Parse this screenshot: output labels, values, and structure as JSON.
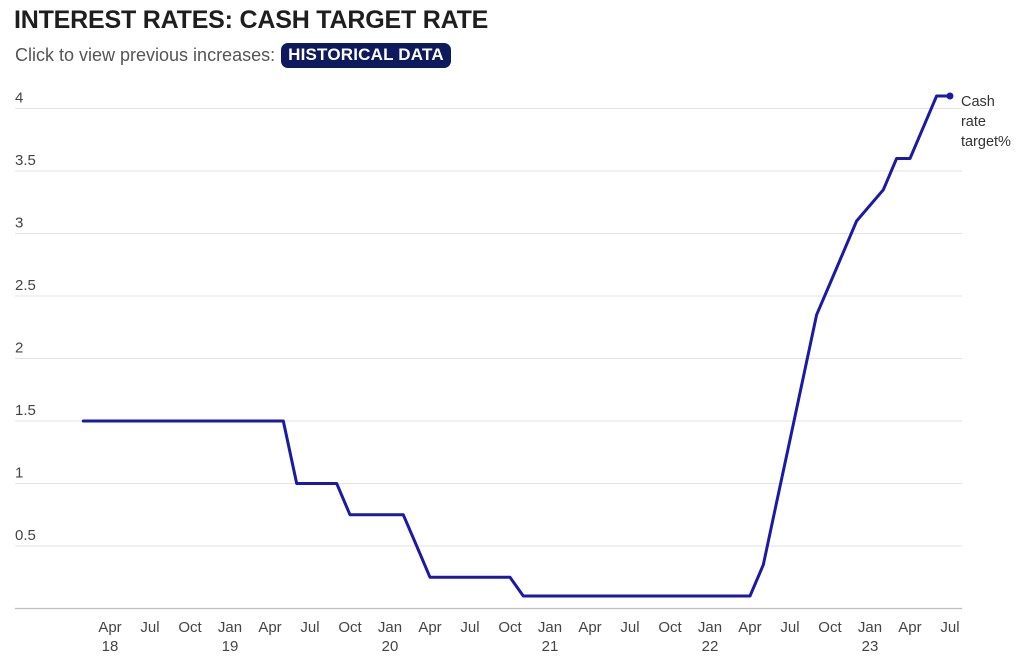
{
  "header": {
    "title": "INTEREST RATES: CASH TARGET RATE",
    "subtitle": "Click to view previous increases:",
    "button_label": "HISTORICAL DATA"
  },
  "colors": {
    "line": "#1a1aa6",
    "button_bg": "#0d1b5e",
    "grid": "#e3e3e3"
  },
  "chart_data": {
    "type": "line",
    "title": "INTEREST RATES: CASH TARGET RATE",
    "xlabel": "",
    "ylabel": "",
    "ylim": [
      0,
      4.1
    ],
    "grid": true,
    "legend": "end-of-line label",
    "y_ticks": [
      "0.5",
      "1",
      "1.5",
      "2",
      "2.5",
      "3",
      "3.5",
      "4"
    ],
    "x_ticks": [
      {
        "date": "2018-04",
        "label": "Apr",
        "year": "18"
      },
      {
        "date": "2018-07",
        "label": "Jul",
        "year": ""
      },
      {
        "date": "2018-10",
        "label": "Oct",
        "year": ""
      },
      {
        "date": "2019-01",
        "label": "Jan",
        "year": "19"
      },
      {
        "date": "2019-04",
        "label": "Apr",
        "year": ""
      },
      {
        "date": "2019-07",
        "label": "Jul",
        "year": ""
      },
      {
        "date": "2019-10",
        "label": "Oct",
        "year": ""
      },
      {
        "date": "2020-01",
        "label": "Jan",
        "year": "20"
      },
      {
        "date": "2020-04",
        "label": "Apr",
        "year": ""
      },
      {
        "date": "2020-07",
        "label": "Jul",
        "year": ""
      },
      {
        "date": "2020-10",
        "label": "Oct",
        "year": ""
      },
      {
        "date": "2021-01",
        "label": "Jan",
        "year": "21"
      },
      {
        "date": "2021-04",
        "label": "Apr",
        "year": ""
      },
      {
        "date": "2021-07",
        "label": "Jul",
        "year": ""
      },
      {
        "date": "2021-10",
        "label": "Oct",
        "year": ""
      },
      {
        "date": "2022-01",
        "label": "Jan",
        "year": "22"
      },
      {
        "date": "2022-04",
        "label": "Apr",
        "year": ""
      },
      {
        "date": "2022-07",
        "label": "Jul",
        "year": ""
      },
      {
        "date": "2022-10",
        "label": "Oct",
        "year": ""
      },
      {
        "date": "2023-01",
        "label": "Jan",
        "year": "23"
      },
      {
        "date": "2023-04",
        "label": "Apr",
        "year": ""
      },
      {
        "date": "2023-07",
        "label": "Jul",
        "year": ""
      }
    ],
    "series": [
      {
        "name": "Cash rate target%",
        "x": [
          "2018-02",
          "2019-05",
          "2019-06",
          "2019-09",
          "2019-10",
          "2020-02",
          "2020-03",
          "2020-04",
          "2020-10",
          "2020-11",
          "2022-04",
          "2022-05",
          "2022-06",
          "2022-07",
          "2022-08",
          "2022-09",
          "2022-10",
          "2022-11",
          "2022-12",
          "2023-02",
          "2023-03",
          "2023-04",
          "2023-05",
          "2023-06",
          "2023-07"
        ],
        "values": [
          1.5,
          1.5,
          1.0,
          1.0,
          0.75,
          0.75,
          0.5,
          0.25,
          0.25,
          0.1,
          0.1,
          0.35,
          0.85,
          1.35,
          1.85,
          2.35,
          2.6,
          2.85,
          3.1,
          3.35,
          3.6,
          3.6,
          3.85,
          4.1,
          4.1
        ]
      }
    ]
  }
}
